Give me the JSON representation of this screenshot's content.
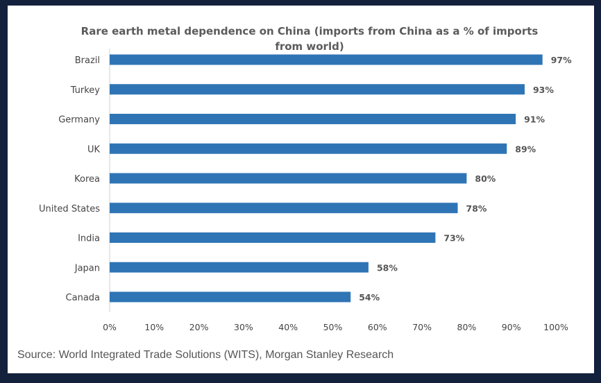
{
  "chart_data": {
    "type": "bar",
    "orientation": "horizontal",
    "title": "Rare earth metal dependence on China (imports from China as a % of imports from world)",
    "categories": [
      "Brazil",
      "Turkey",
      "Germany",
      "UK",
      "Korea",
      "United States",
      "India",
      "Japan",
      "Canada"
    ],
    "values": [
      97,
      93,
      91,
      89,
      80,
      78,
      73,
      58,
      54
    ],
    "value_labels": [
      "97%",
      "93%",
      "91%",
      "89%",
      "80%",
      "78%",
      "73%",
      "58%",
      "54%"
    ],
    "xlim": [
      0,
      100
    ],
    "xticks": [
      "0%",
      "10%",
      "20%",
      "30%",
      "40%",
      "50%",
      "60%",
      "70%",
      "80%",
      "90%",
      "100%"
    ],
    "xlabel": "",
    "ylabel": "",
    "grid": false,
    "bar_color": "#2f75b5"
  },
  "source": "Source: World Integrated Trade Solutions (WITS), Morgan Stanley Research"
}
